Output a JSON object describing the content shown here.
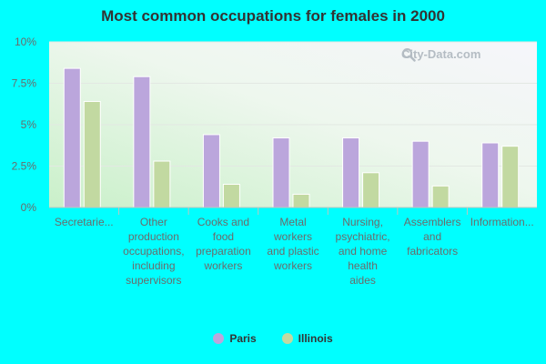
{
  "chart_data": {
    "type": "bar",
    "title": "Most common occupations for females in 2000",
    "categories": [
      "Secretarie...",
      "Other production occupations, including supervisors",
      "Cooks and food preparation workers",
      "Metal workers and plastic workers",
      "Nursing, psychiatric, and home health aides",
      "Assemblers and fabricators",
      "Information..."
    ],
    "category_lines": [
      [
        "Secretarie..."
      ],
      [
        "Other",
        "production",
        "occupations,",
        "including",
        "supervisors"
      ],
      [
        "Cooks and",
        "food",
        "preparation",
        "workers"
      ],
      [
        "Metal",
        "workers",
        "and plastic",
        "workers"
      ],
      [
        "Nursing,",
        "psychiatric,",
        "and home",
        "health",
        "aides"
      ],
      [
        "Assemblers",
        "and",
        "fabricators"
      ],
      [
        "Information..."
      ]
    ],
    "series": [
      {
        "name": "Paris",
        "color": "#bba6dc",
        "values": [
          8.4,
          7.9,
          4.4,
          4.2,
          4.2,
          4.0,
          3.9
        ]
      },
      {
        "name": "Illinois",
        "color": "#c2d9a1",
        "values": [
          6.4,
          2.8,
          1.4,
          0.8,
          2.1,
          1.3,
          3.7
        ]
      }
    ],
    "ylim": [
      0,
      10
    ],
    "yticks": [
      0,
      2.5,
      5,
      7.5,
      10
    ],
    "ytick_labels": [
      "0%",
      "2.5%",
      "5%",
      "7.5%",
      "10%"
    ],
    "xlabel": "",
    "ylabel": "",
    "legend_position": "bottom-center"
  },
  "watermark": "City-Data.com"
}
